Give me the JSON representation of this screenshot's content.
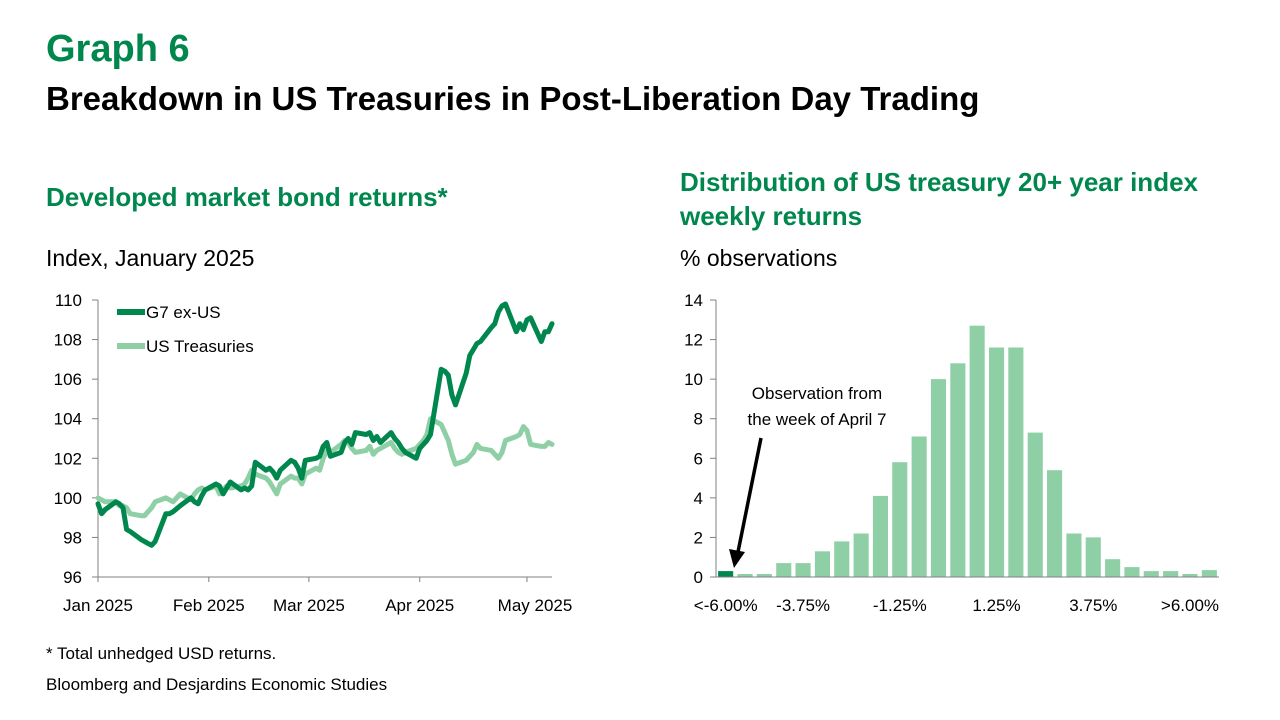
{
  "header": {
    "graph_number": "Graph 6",
    "title": "Breakdown in US Treasuries in Post-Liberation Day Trading"
  },
  "left_panel": {
    "subtitle": "Developed market bond returns*",
    "unit": "Index, January 2025"
  },
  "right_panel": {
    "subtitle_line1": "Distribution of US treasury 20+ year index",
    "subtitle_line2": "weekly returns",
    "unit": "% observations",
    "annotation_line1": "Observation from",
    "annotation_line2": "the week of April 7"
  },
  "footer": {
    "note": "* Total unhedged USD returns.",
    "source": "Bloomberg and Desjardins Economic Studies"
  },
  "colors": {
    "dark_green": "#00874e",
    "light_green": "#8fcfa6",
    "black": "#000000"
  },
  "chart_data": [
    {
      "type": "line",
      "ylim": [
        96,
        110
      ],
      "yticks": [
        96,
        98,
        100,
        102,
        104,
        106,
        108,
        110
      ],
      "x_tick_labels": [
        "Jan 2025",
        "Feb 2025",
        "Mar 2025",
        "Apr 2025",
        "May 2025"
      ],
      "x_range": [
        "2025-01-01",
        "2025-05-08"
      ],
      "legend_placement": "top-left",
      "grid": false,
      "series": [
        {
          "name": "G7 ex-US",
          "color": "#00874e",
          "points": [
            [
              "2025-01-01",
              99.7
            ],
            [
              "2025-01-02",
              99.2
            ],
            [
              "2025-01-03",
              99.4
            ],
            [
              "2025-01-06",
              99.8
            ],
            [
              "2025-01-07",
              99.7
            ],
            [
              "2025-01-08",
              99.5
            ],
            [
              "2025-01-09",
              98.4
            ],
            [
              "2025-01-10",
              98.3
            ],
            [
              "2025-01-13",
              97.9
            ],
            [
              "2025-01-14",
              97.8
            ],
            [
              "2025-01-15",
              97.7
            ],
            [
              "2025-01-16",
              97.6
            ],
            [
              "2025-01-17",
              97.8
            ],
            [
              "2025-01-20",
              99.2
            ],
            [
              "2025-01-21",
              99.2
            ],
            [
              "2025-01-22",
              99.3
            ],
            [
              "2025-01-24",
              99.6
            ],
            [
              "2025-01-27",
              100.0
            ],
            [
              "2025-01-28",
              99.8
            ],
            [
              "2025-01-29",
              99.7
            ],
            [
              "2025-01-30",
              100.1
            ],
            [
              "2025-01-31",
              100.4
            ],
            [
              "2025-02-03",
              100.7
            ],
            [
              "2025-02-04",
              100.6
            ],
            [
              "2025-02-05",
              100.2
            ],
            [
              "2025-02-06",
              100.5
            ],
            [
              "2025-02-07",
              100.8
            ],
            [
              "2025-02-10",
              100.4
            ],
            [
              "2025-02-11",
              100.5
            ],
            [
              "2025-02-12",
              100.4
            ],
            [
              "2025-02-13",
              100.6
            ],
            [
              "2025-02-14",
              101.8
            ],
            [
              "2025-02-17",
              101.4
            ],
            [
              "2025-02-18",
              101.5
            ],
            [
              "2025-02-19",
              101.3
            ],
            [
              "2025-02-20",
              101.0
            ],
            [
              "2025-02-21",
              101.4
            ],
            [
              "2025-02-24",
              101.9
            ],
            [
              "2025-02-25",
              101.8
            ],
            [
              "2025-02-26",
              101.5
            ],
            [
              "2025-02-27",
              101.0
            ],
            [
              "2025-02-28",
              101.9
            ],
            [
              "2025-03-03",
              102.0
            ],
            [
              "2025-03-04",
              102.1
            ],
            [
              "2025-03-05",
              102.6
            ],
            [
              "2025-03-06",
              102.8
            ],
            [
              "2025-03-07",
              102.1
            ],
            [
              "2025-03-10",
              102.3
            ],
            [
              "2025-03-11",
              102.8
            ],
            [
              "2025-03-12",
              103.0
            ],
            [
              "2025-03-13",
              102.7
            ],
            [
              "2025-03-14",
              103.3
            ],
            [
              "2025-03-17",
              103.2
            ],
            [
              "2025-03-18",
              103.3
            ],
            [
              "2025-03-19",
              102.9
            ],
            [
              "2025-03-20",
              103.1
            ],
            [
              "2025-03-21",
              102.8
            ],
            [
              "2025-03-24",
              103.3
            ],
            [
              "2025-03-25",
              103.0
            ],
            [
              "2025-03-26",
              102.8
            ],
            [
              "2025-03-27",
              102.5
            ],
            [
              "2025-03-28",
              102.3
            ],
            [
              "2025-03-31",
              102.0
            ],
            [
              "2025-04-01",
              102.5
            ],
            [
              "2025-04-02",
              102.7
            ],
            [
              "2025-04-03",
              102.9
            ],
            [
              "2025-04-04",
              103.2
            ],
            [
              "2025-04-07",
              106.5
            ],
            [
              "2025-04-08",
              106.4
            ],
            [
              "2025-04-09",
              106.2
            ],
            [
              "2025-04-10",
              105.2
            ],
            [
              "2025-04-11",
              104.7
            ],
            [
              "2025-04-14",
              106.3
            ],
            [
              "2025-04-15",
              107.2
            ],
            [
              "2025-04-16",
              107.5
            ],
            [
              "2025-04-17",
              107.8
            ],
            [
              "2025-04-18",
              107.9
            ],
            [
              "2025-04-21",
              108.6
            ],
            [
              "2025-04-22",
              108.8
            ],
            [
              "2025-04-23",
              109.4
            ],
            [
              "2025-04-24",
              109.7
            ],
            [
              "2025-04-25",
              109.8
            ],
            [
              "2025-04-28",
              108.4
            ],
            [
              "2025-04-29",
              108.8
            ],
            [
              "2025-04-30",
              108.5
            ],
            [
              "2025-05-01",
              109.0
            ],
            [
              "2025-05-02",
              109.1
            ],
            [
              "2025-05-05",
              107.9
            ],
            [
              "2025-05-06",
              108.4
            ],
            [
              "2025-05-07",
              108.4
            ],
            [
              "2025-05-08",
              108.8
            ]
          ]
        },
        {
          "name": "US Treasuries",
          "color": "#8fcfa6",
          "points": [
            [
              "2025-01-01",
              100.0
            ],
            [
              "2025-01-02",
              99.9
            ],
            [
              "2025-01-03",
              99.8
            ],
            [
              "2025-01-06",
              99.8
            ],
            [
              "2025-01-07",
              99.6
            ],
            [
              "2025-01-08",
              99.6
            ],
            [
              "2025-01-09",
              99.5
            ],
            [
              "2025-01-10",
              99.2
            ],
            [
              "2025-01-13",
              99.1
            ],
            [
              "2025-01-14",
              99.1
            ],
            [
              "2025-01-15",
              99.3
            ],
            [
              "2025-01-16",
              99.5
            ],
            [
              "2025-01-17",
              99.8
            ],
            [
              "2025-01-20",
              100.0
            ],
            [
              "2025-01-21",
              99.9
            ],
            [
              "2025-01-22",
              99.8
            ],
            [
              "2025-01-24",
              100.2
            ],
            [
              "2025-01-27",
              99.9
            ],
            [
              "2025-01-28",
              100.2
            ],
            [
              "2025-01-29",
              100.4
            ],
            [
              "2025-01-30",
              100.5
            ],
            [
              "2025-01-31",
              100.4
            ],
            [
              "2025-02-03",
              100.6
            ],
            [
              "2025-02-04",
              100.2
            ],
            [
              "2025-02-05",
              100.4
            ],
            [
              "2025-02-06",
              100.6
            ],
            [
              "2025-02-07",
              100.5
            ],
            [
              "2025-02-10",
              100.6
            ],
            [
              "2025-02-11",
              100.7
            ],
            [
              "2025-02-12",
              101.0
            ],
            [
              "2025-02-13",
              101.4
            ],
            [
              "2025-02-14",
              101.2
            ],
            [
              "2025-02-17",
              101.0
            ],
            [
              "2025-02-18",
              100.8
            ],
            [
              "2025-02-19",
              100.5
            ],
            [
              "2025-02-20",
              100.2
            ],
            [
              "2025-02-21",
              100.7
            ],
            [
              "2025-02-24",
              101.1
            ],
            [
              "2025-02-25",
              101.0
            ],
            [
              "2025-02-26",
              101.0
            ],
            [
              "2025-02-27",
              100.7
            ],
            [
              "2025-02-28",
              101.2
            ],
            [
              "2025-03-03",
              101.5
            ],
            [
              "2025-03-04",
              101.4
            ],
            [
              "2025-03-05",
              102.0
            ],
            [
              "2025-03-06",
              102.4
            ],
            [
              "2025-03-07",
              102.3
            ],
            [
              "2025-03-10",
              102.7
            ],
            [
              "2025-03-11",
              102.9
            ],
            [
              "2025-03-12",
              102.8
            ],
            [
              "2025-03-13",
              102.5
            ],
            [
              "2025-03-14",
              102.3
            ],
            [
              "2025-03-17",
              102.4
            ],
            [
              "2025-03-18",
              102.6
            ],
            [
              "2025-03-19",
              102.2
            ],
            [
              "2025-03-20",
              102.4
            ],
            [
              "2025-03-21",
              102.5
            ],
            [
              "2025-03-24",
              102.8
            ],
            [
              "2025-03-25",
              102.5
            ],
            [
              "2025-03-26",
              102.3
            ],
            [
              "2025-03-27",
              102.2
            ],
            [
              "2025-03-28",
              102.3
            ],
            [
              "2025-03-31",
              102.5
            ],
            [
              "2025-04-01",
              102.7
            ],
            [
              "2025-04-02",
              102.9
            ],
            [
              "2025-04-03",
              103.2
            ],
            [
              "2025-04-04",
              104.0
            ],
            [
              "2025-04-07",
              103.7
            ],
            [
              "2025-04-08",
              103.3
            ],
            [
              "2025-04-09",
              102.9
            ],
            [
              "2025-04-10",
              102.2
            ],
            [
              "2025-04-11",
              101.7
            ],
            [
              "2025-04-14",
              101.9
            ],
            [
              "2025-04-15",
              102.1
            ],
            [
              "2025-04-16",
              102.3
            ],
            [
              "2025-04-17",
              102.7
            ],
            [
              "2025-04-18",
              102.5
            ],
            [
              "2025-04-21",
              102.4
            ],
            [
              "2025-04-22",
              102.2
            ],
            [
              "2025-04-23",
              102.0
            ],
            [
              "2025-04-24",
              102.3
            ],
            [
              "2025-04-25",
              102.9
            ],
            [
              "2025-04-28",
              103.1
            ],
            [
              "2025-04-29",
              103.2
            ],
            [
              "2025-04-30",
              103.6
            ],
            [
              "2025-05-01",
              103.4
            ],
            [
              "2025-05-02",
              102.7
            ],
            [
              "2025-05-05",
              102.6
            ],
            [
              "2025-05-06",
              102.6
            ],
            [
              "2025-05-07",
              102.8
            ],
            [
              "2025-05-08",
              102.7
            ]
          ]
        }
      ]
    },
    {
      "type": "bar",
      "ylim": [
        0,
        14
      ],
      "yticks": [
        0,
        2,
        4,
        6,
        8,
        10,
        12,
        14
      ],
      "tick_labels": [
        "<-6.00%",
        "-3.75%",
        "-1.25%",
        "1.25%",
        "3.75%",
        ">6.00%"
      ],
      "tick_label_bins": [
        0,
        4,
        9,
        14,
        19,
        24
      ],
      "highlight_bin": 0,
      "values": [
        0.3,
        0.15,
        0.15,
        0.7,
        0.7,
        1.3,
        1.8,
        2.2,
        4.1,
        5.8,
        7.1,
        10.0,
        10.8,
        12.7,
        11.6,
        11.6,
        7.3,
        5.4,
        2.2,
        2.0,
        0.9,
        0.5,
        0.3,
        0.3,
        0.15,
        0.35
      ],
      "grid": false
    }
  ]
}
